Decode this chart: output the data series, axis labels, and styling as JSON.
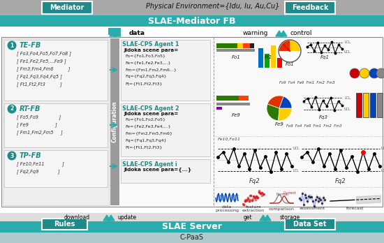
{
  "title_top": "Physical Environment={Idu, Iu, Au,Cu}",
  "mediator_label": "Mediator",
  "feedback_label": "Feedback",
  "slae_mediator_label": "SLAE-Mediator FB",
  "data_label": "data",
  "warning_label": "warning",
  "control_label": "control",
  "download_label": "download",
  "update_label": "update",
  "get_label": "get",
  "storage_label": "storage",
  "slae_server_label": "SLAE Server",
  "rules_label": "Rules",
  "dataset_label": "Data Set",
  "cpaas_label": "C-PaaS",
  "config_label": "Configuration",
  "header_gray": "#a8a8a8",
  "teal_dark": "#1e8a8a",
  "teal_mid": "#2aacac",
  "teal_light": "#3bbfbf",
  "box_bg": "#f2f2f2",
  "white": "#ffffff",
  "black": "#000000",
  "agents": [
    {
      "title": "SLAE-CPS Agent 1",
      "subtitle": "Jidoka scene para=",
      "lines": [
        "Fo={Fo1,Fo3,Fo5}",
        "Fe={Fe1,Fe2,Fe3,...}",
        "Fm={Fm1,Fm2,Fm6...}",
        "Fq={Fq2,Fq3,Fq4}",
        "Ft={Ft1,Ft2,Ft3}"
      ]
    },
    {
      "title": "SLAE-CPS Agent 2",
      "subtitle": "Jidoka scene para=",
      "lines": [
        "Fo={Fo1,Fo2,Fo5}",
        "Fe={Fe2,Fe3,Fe4,...}",
        "Fm={Fm2,Fm5,Fm6}",
        "Fq={Fq1,Fq3,Fq4}",
        "Ft={Ft1,Ft2,Ft3}"
      ]
    },
    {
      "title": "SLAE-CPS Agent i",
      "subtitle": "Jidoka scene para={...}",
      "lines": []
    }
  ],
  "fb_groups": [
    {
      "num": "1",
      "name": "TE-FB",
      "lines": [
        "[ Fo3,Fo4,Fo5,Fo7,Fo8 ]",
        "[ Fe1,Fe2,Fe5,...Fe9 ]",
        "[ Fm3,Fm4,Fm6          ]",
        "[ Fq1,Fq3,Fq4,Fq5 ]",
        "[ Ft1,Ft2,Ft3          ]"
      ]
    },
    {
      "num": "2",
      "name": "RT-FB",
      "lines": [
        "[ Fo5,Fo9              ]",
        "[ Fe9                  ]",
        "[ Fm1,Fm2,Fm5     ]"
      ]
    },
    {
      "num": "3",
      "name": "TP-FB",
      "lines": [
        "[ Fe10,Fe11            ]",
        "[ Fq2,Fq9             ]"
      ]
    }
  ],
  "bottom_labels": [
    "data\nprocessing",
    "feature\nextraction",
    "comparison",
    "assessment",
    "forecast"
  ]
}
